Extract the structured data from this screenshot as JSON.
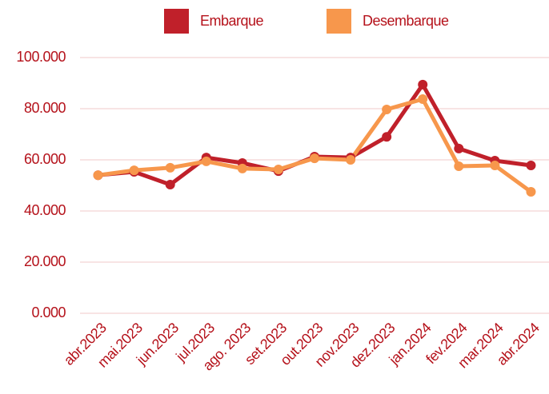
{
  "chart_data": {
    "type": "line",
    "categories": [
      "abr.2023",
      "mai.2023",
      "jun.2023",
      "jul.2023",
      "ago. 2023",
      "set.2023",
      "out.2023",
      "nov.2023",
      "dez.2023",
      "jan.2024",
      "fev.2024",
      "mar.2024",
      "abr.2024"
    ],
    "series": [
      {
        "name": "Embarque",
        "color": "#c0202a",
        "values": [
          54000,
          55300,
          50300,
          60900,
          58750,
          55600,
          61250,
          60900,
          69000,
          89400,
          64400,
          59700,
          57800
        ]
      },
      {
        "name": "Desembarque",
        "color": "#f7974c",
        "values": [
          54000,
          55900,
          56900,
          59400,
          56600,
          56250,
          60600,
          60000,
          79700,
          83750,
          57500,
          57800,
          47500
        ]
      }
    ],
    "ylim": [
      0,
      100000
    ],
    "yticks": [
      {
        "value": 0,
        "label": "0.000"
      },
      {
        "value": 20000,
        "label": "20.000"
      },
      {
        "value": 40000,
        "label": "40.000"
      },
      {
        "value": 60000,
        "label": "60.000"
      },
      {
        "value": 80000,
        "label": "80.000"
      },
      {
        "value": 100000,
        "label": "100.000"
      }
    ],
    "grid": true,
    "legend": "top"
  }
}
